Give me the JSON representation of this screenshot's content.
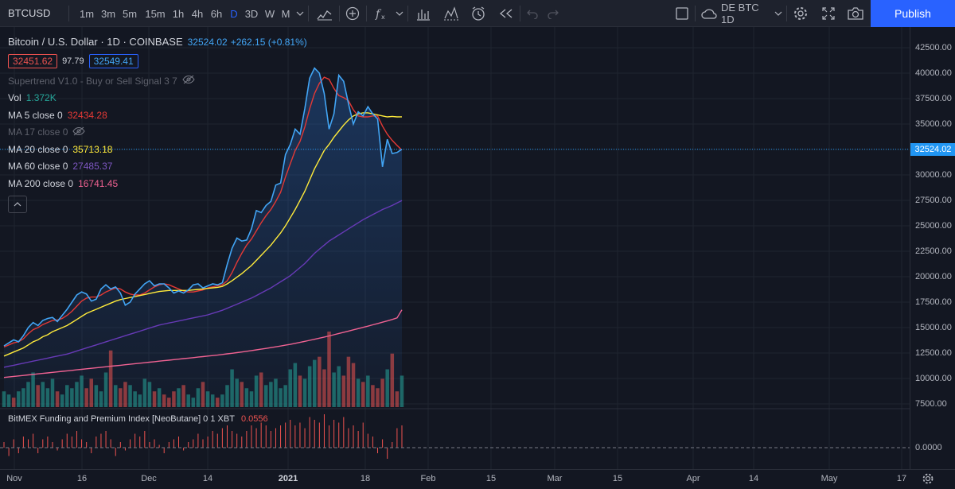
{
  "toolbar": {
    "symbol": "BTCUSD",
    "intervals": [
      "1m",
      "3m",
      "5m",
      "15m",
      "1h",
      "4h",
      "6h",
      "D",
      "3D",
      "W",
      "M"
    ],
    "active_interval": "D",
    "layout_name": "DE BTC 1D",
    "publish_label": "Publish",
    "icons": [
      "bar-style-icon",
      "add-compare-icon",
      "indicators-icon",
      "chevron-down-icon",
      "financials-icon",
      "templates-icon",
      "alert-icon",
      "replay-icon",
      "undo-icon",
      "redo-icon",
      "fullscreen-square-icon",
      "cloud-icon",
      "chevron-down-icon",
      "settings-icon",
      "expand-icon",
      "camera-icon"
    ]
  },
  "legend": {
    "title": "Bitcoin / U.S. Dollar · 1D · COINBASE",
    "last": "32524.02",
    "change": "+262.15 (+0.81%)",
    "bid": "32451.62",
    "spread": "97.79",
    "ask": "32549.41",
    "supertrend": "Supertrend V1.0 - Buy or Sell Signal 3 7",
    "vol_label": "Vol",
    "vol_value": "1.372K",
    "ma5_label": "MA 5 close 0",
    "ma5_value": "32434.28",
    "ma17_label": "MA 17 close 0",
    "ma20_label": "MA 20 close 0",
    "ma20_value": "35713.18",
    "ma60_label": "MA 60 close 0",
    "ma60_value": "27485.37",
    "ma200_label": "MA 200 close 0",
    "ma200_value": "16741.45",
    "sub_label": "BitMEX Funding and Premium Index [NeoButane] 0 1 XBT",
    "sub_value": "0.0556"
  },
  "colors": {
    "price_line": "#42a5f5",
    "ma5": "#e53935",
    "ma20": "#ffeb3b",
    "ma60": "#673ab7",
    "ma200": "#f06292",
    "vol_up": "#26a69a",
    "vol_down": "#ef5350",
    "accent": "#2962ff"
  },
  "price_scale": {
    "labels": [
      "42500.00",
      "40000.00",
      "37500.00",
      "35000.00",
      "32500.00",
      "30000.00",
      "27500.00",
      "25000.00",
      "22500.00",
      "20000.00",
      "17500.00",
      "15000.00",
      "12500.00",
      "10000.00",
      "7500.00"
    ],
    "current": "32524.02",
    "sub_labels": [
      "0.0000"
    ]
  },
  "time_scale": {
    "labels": [
      "Nov",
      "16",
      "Dec",
      "14",
      "2021",
      "18",
      "Feb",
      "15",
      "Mar",
      "15",
      "Apr",
      "14",
      "May",
      "17"
    ],
    "bold_label": "2021"
  },
  "chart_data": {
    "type": "line",
    "symbol": "BTCUSD",
    "interval": "1D",
    "ylim": [
      7500,
      42500
    ],
    "price_series": [
      {
        "name": "Close",
        "values": [
          13200,
          13500,
          13800,
          13600,
          14200,
          15000,
          15500,
          15200,
          15700,
          15900,
          16000,
          15600,
          16200,
          16800,
          17500,
          18200,
          18500,
          18300,
          17600,
          17800,
          18800,
          19200,
          18800,
          19000,
          18400,
          17200,
          17500,
          18300,
          18800,
          19300,
          19600,
          19100,
          19300,
          19300,
          18900,
          18400,
          18600,
          18400,
          18700,
          19200,
          19300,
          18900,
          19100,
          19300,
          19200,
          19400,
          21200,
          22800,
          23800,
          23500,
          23600,
          24700,
          26500,
          26300,
          27000,
          27400,
          29000,
          29200,
          32000,
          33000,
          34500,
          34000,
          36500,
          39500,
          40500,
          40000,
          38000,
          34500,
          36000,
          39800,
          39200,
          37000,
          35000,
          36200,
          35800,
          36700,
          36000,
          35500,
          30800,
          33500,
          32100,
          32200,
          32524
        ]
      },
      {
        "name": "MA 5",
        "values": [
          13100,
          13300,
          13500,
          13600,
          13900,
          14400,
          14800,
          15000,
          15300,
          15500,
          15700,
          15750,
          15900,
          16200,
          16600,
          17100,
          17600,
          17900,
          18000,
          18000,
          18200,
          18500,
          18700,
          18900,
          18800,
          18500,
          18300,
          18200,
          18200,
          18400,
          18700,
          19000,
          19200,
          19300,
          19200,
          19000,
          18800,
          18600,
          18500,
          18500,
          18600,
          18700,
          18900,
          19000,
          19100,
          19200,
          19600,
          20400,
          21400,
          22300,
          23100,
          23700,
          24500,
          25300,
          26000,
          26600,
          27400,
          28300,
          29800,
          31100,
          32400,
          33300,
          34700,
          36500,
          38000,
          39000,
          39600,
          39400,
          38500,
          37800,
          37600,
          37300,
          36400,
          35800,
          35700,
          35700,
          35800,
          35800,
          34800,
          34000,
          33400,
          32900,
          32434
        ]
      },
      {
        "name": "MA 20",
        "values": [
          12200,
          12400,
          12600,
          12800,
          13000,
          13300,
          13600,
          13800,
          14100,
          14300,
          14600,
          14800,
          15000,
          15200,
          15500,
          15800,
          16100,
          16400,
          16600,
          16800,
          17000,
          17200,
          17400,
          17600,
          17750,
          17850,
          17950,
          18050,
          18150,
          18250,
          18350,
          18450,
          18550,
          18600,
          18650,
          18650,
          18650,
          18650,
          18650,
          18700,
          18750,
          18800,
          18850,
          18900,
          18950,
          19050,
          19300,
          19600,
          19950,
          20300,
          20700,
          21100,
          21600,
          22100,
          22600,
          23100,
          23700,
          24300,
          25000,
          25800,
          26600,
          27500,
          28400,
          29500,
          30600,
          31500,
          32400,
          33000,
          33700,
          34300,
          34900,
          35400,
          35800,
          36000,
          36100,
          36100,
          36000,
          35900,
          35800,
          35700,
          35750,
          35700,
          35713
        ]
      },
      {
        "name": "MA 60",
        "values": [
          11100,
          11200,
          11300,
          11400,
          11500,
          11600,
          11700,
          11800,
          11900,
          12000,
          12100,
          12200,
          12300,
          12400,
          12550,
          12700,
          12850,
          13000,
          13150,
          13300,
          13450,
          13600,
          13750,
          13900,
          14050,
          14200,
          14350,
          14500,
          14650,
          14800,
          14950,
          15100,
          15250,
          15350,
          15450,
          15550,
          15650,
          15750,
          15850,
          15950,
          16050,
          16150,
          16250,
          16400,
          16550,
          16700,
          16900,
          17100,
          17300,
          17500,
          17700,
          17900,
          18150,
          18400,
          18650,
          18900,
          19200,
          19500,
          19800,
          20100,
          20500,
          20900,
          21300,
          21800,
          22300,
          22700,
          23100,
          23500,
          23800,
          24100,
          24400,
          24700,
          25000,
          25300,
          25600,
          25850,
          26100,
          26350,
          26600,
          26800,
          27000,
          27250,
          27485
        ]
      },
      {
        "name": "MA 200",
        "values": [
          10100,
          10150,
          10200,
          10250,
          10300,
          10350,
          10400,
          10450,
          10500,
          10550,
          10600,
          10650,
          10700,
          10750,
          10800,
          10850,
          10900,
          10950,
          11000,
          11050,
          11100,
          11150,
          11200,
          11250,
          11300,
          11350,
          11400,
          11450,
          11500,
          11550,
          11600,
          11650,
          11700,
          11750,
          11800,
          11850,
          11900,
          11950,
          12000,
          12050,
          12100,
          12150,
          12200,
          12250,
          12300,
          12360,
          12420,
          12480,
          12540,
          12600,
          12670,
          12740,
          12810,
          12880,
          12950,
          13030,
          13110,
          13190,
          13270,
          13350,
          13450,
          13550,
          13650,
          13750,
          13850,
          13960,
          14070,
          14180,
          14300,
          14420,
          14540,
          14660,
          14780,
          14900,
          15020,
          15140,
          15270,
          15400,
          15530,
          15660,
          15800,
          15950,
          16741
        ]
      }
    ],
    "volume": [
      5,
      4,
      3,
      5,
      6,
      8,
      11,
      7,
      8,
      6,
      9,
      5,
      4,
      7,
      6,
      8,
      10,
      6,
      9,
      7,
      5,
      11,
      18,
      7,
      6,
      8,
      7,
      5,
      4,
      9,
      8,
      5,
      6,
      4,
      3,
      5,
      6,
      7,
      4,
      3,
      6,
      8,
      5,
      4,
      3,
      4,
      7,
      12,
      9,
      8,
      6,
      5,
      10,
      11,
      7,
      8,
      9,
      6,
      7,
      12,
      14,
      10,
      9,
      13,
      15,
      16,
      12,
      24,
      11,
      13,
      10,
      16,
      14,
      9,
      8,
      10,
      7,
      6,
      9,
      12,
      17,
      5,
      10
    ],
    "volume_up": [
      1,
      1,
      0,
      1,
      1,
      1,
      1,
      0,
      1,
      1,
      1,
      0,
      1,
      1,
      1,
      1,
      1,
      0,
      0,
      1,
      1,
      1,
      0,
      1,
      0,
      0,
      1,
      1,
      1,
      1,
      1,
      0,
      1,
      0,
      0,
      0,
      1,
      0,
      1,
      1,
      1,
      0,
      1,
      1,
      0,
      1,
      1,
      1,
      1,
      0,
      1,
      1,
      1,
      0,
      1,
      1,
      1,
      1,
      1,
      1,
      1,
      0,
      1,
      1,
      1,
      0,
      0,
      0,
      1,
      1,
      0,
      0,
      0,
      1,
      0,
      1,
      0,
      0,
      0,
      1,
      0,
      0,
      1
    ],
    "funding_series": {
      "name": "BitMEX Funding and Premium Index",
      "values": [
        2,
        -3,
        3,
        -2,
        4,
        3,
        5,
        -2,
        3,
        4,
        2,
        -1,
        3,
        5,
        4,
        6,
        3,
        2,
        -2,
        4,
        5,
        6,
        3,
        -3,
        2,
        -1,
        3,
        5,
        4,
        6,
        2,
        3,
        1,
        -2,
        2,
        3,
        4,
        -1,
        2,
        3,
        5,
        3,
        4,
        6,
        5,
        7,
        8,
        6,
        5,
        4,
        6,
        8,
        7,
        9,
        8,
        6,
        7,
        8,
        9,
        10,
        8,
        9,
        7,
        11,
        10,
        9,
        12,
        8,
        10,
        9,
        11,
        7,
        8,
        6,
        9,
        5,
        4,
        -2,
        3,
        -4,
        2,
        7,
        8
      ]
    },
    "time_labels": [
      "Nov",
      "16",
      "Dec",
      "14",
      "2021",
      "18",
      "Feb",
      "15",
      "Mar",
      "15",
      "Apr",
      "14",
      "May",
      "17"
    ]
  }
}
